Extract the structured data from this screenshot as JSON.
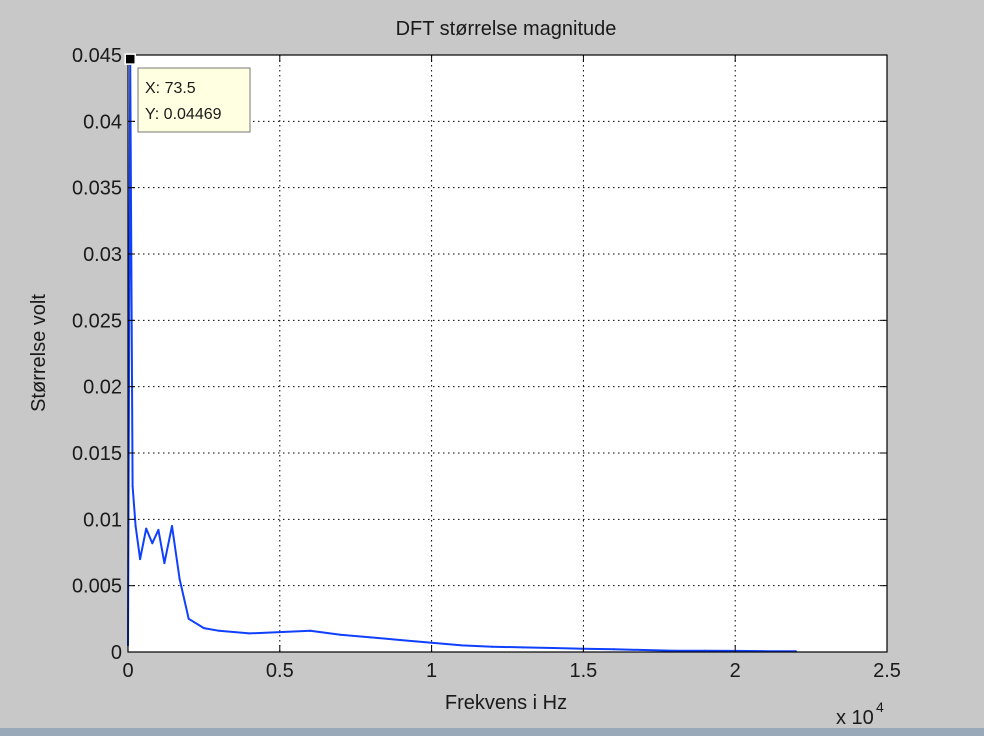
{
  "chart_data": {
    "type": "line",
    "title": "DFT størrelse magnitude",
    "xlabel": "Frekvens i Hz",
    "ylabel": "Størrelse volt",
    "x_multiplier": "x 10",
    "x_multiplier_exp": "4",
    "xlim": [
      0,
      25000
    ],
    "ylim": [
      0,
      0.045
    ],
    "xticks": [
      0,
      5000,
      10000,
      15000,
      20000,
      25000
    ],
    "xtick_labels": [
      "0",
      "0.5",
      "1",
      "1.5",
      "2",
      "2.5"
    ],
    "yticks": [
      0,
      0.005,
      0.01,
      0.015,
      0.02,
      0.025,
      0.03,
      0.035,
      0.04,
      0.045
    ],
    "ytick_labels": [
      "0",
      "0.005",
      "0.01",
      "0.015",
      "0.02",
      "0.025",
      "0.03",
      "0.035",
      "0.04",
      "0.045"
    ],
    "grid": true,
    "series": [
      {
        "color": "#1040ff",
        "x": [
          0,
          73.5,
          150,
          250,
          400,
          600,
          800,
          1000,
          1200,
          1450,
          1700,
          2000,
          2500,
          3000,
          4000,
          5000,
          6000,
          7000,
          8000,
          9000,
          10000,
          11000,
          12000,
          13000,
          14000,
          15000,
          16000,
          17000,
          18000,
          19000,
          20000,
          21000,
          22000
        ],
        "y": [
          0.0005,
          0.04469,
          0.0125,
          0.0095,
          0.007,
          0.0093,
          0.0082,
          0.0092,
          0.0067,
          0.0095,
          0.0055,
          0.0025,
          0.0018,
          0.0016,
          0.0014,
          0.0015,
          0.0016,
          0.0013,
          0.0011,
          0.0009,
          0.0007,
          0.0005,
          0.0004,
          0.00035,
          0.0003,
          0.00025,
          0.0002,
          0.00015,
          0.0001,
          0.0001,
          8e-05,
          6e-05,
          5e-05
        ]
      }
    ],
    "annotation": {
      "x": 73.5,
      "y": 0.04469,
      "x_text": "X: 73.5",
      "y_text": "Y: 0.04469"
    }
  }
}
